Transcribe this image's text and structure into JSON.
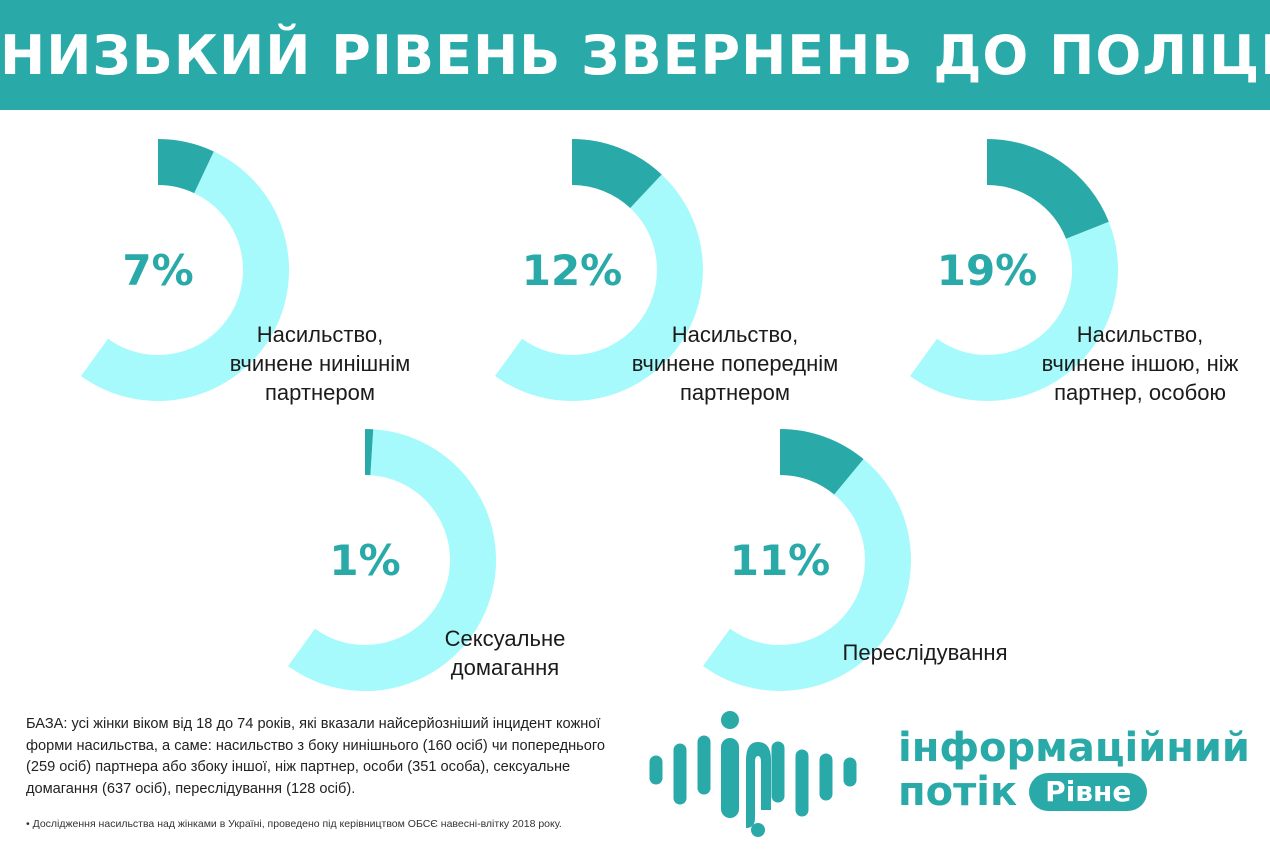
{
  "title": "НИЗЬКИЙ РІВЕНЬ ЗВЕРНЕНЬ ДО ПОЛІЦІЇ",
  "colors": {
    "banner": "#2aa9a9",
    "highlight": "#2aa9a9",
    "remainder": "#a6fafb",
    "percent_text": "#2aa9a9"
  },
  "chart_data": [
    {
      "type": "pie",
      "subtype": "donut",
      "value": 7,
      "value_label": "7%",
      "label_lines": [
        "Насильство,",
        "вчинене нинішнім",
        "партнером"
      ]
    },
    {
      "type": "pie",
      "subtype": "donut",
      "value": 12,
      "value_label": "12%",
      "label_lines": [
        "Насильство,",
        "вчинене попереднім",
        "партнером"
      ]
    },
    {
      "type": "pie",
      "subtype": "donut",
      "value": 19,
      "value_label": "19%",
      "label_lines": [
        "Насильство,",
        "вчинене іншою, ніж",
        "партнер, особою"
      ]
    },
    {
      "type": "pie",
      "subtype": "donut",
      "value": 1,
      "value_label": "1%",
      "label_lines": [
        "Сексуальне",
        "домагання"
      ]
    },
    {
      "type": "pie",
      "subtype": "donut",
      "value": 11,
      "value_label": "11%",
      "label_lines": [
        "Переслідування"
      ]
    }
  ],
  "base_note": "БАЗА: усі жінки віком від 18 до 74 років, які вказали найсерйозніший інцидент кожної форми насильства, а саме: насильство з боку нинішнього (160 осіб) чи попереднього (259 осіб) партнера або збоку іншої, ніж партнер, особи (351 особа), сексуальне домагання (637 осіб), переслідування (128  осіб).",
  "footnote": "• Дослідження насильства над жінками в Україні, проведено під керівництвом ОБСЄ навесні-влітку 2018 року.",
  "logo": {
    "line1": "інформаційний",
    "line2": "потік",
    "badge": "Рівне",
    "icon": "sound-wave-people-icon"
  }
}
